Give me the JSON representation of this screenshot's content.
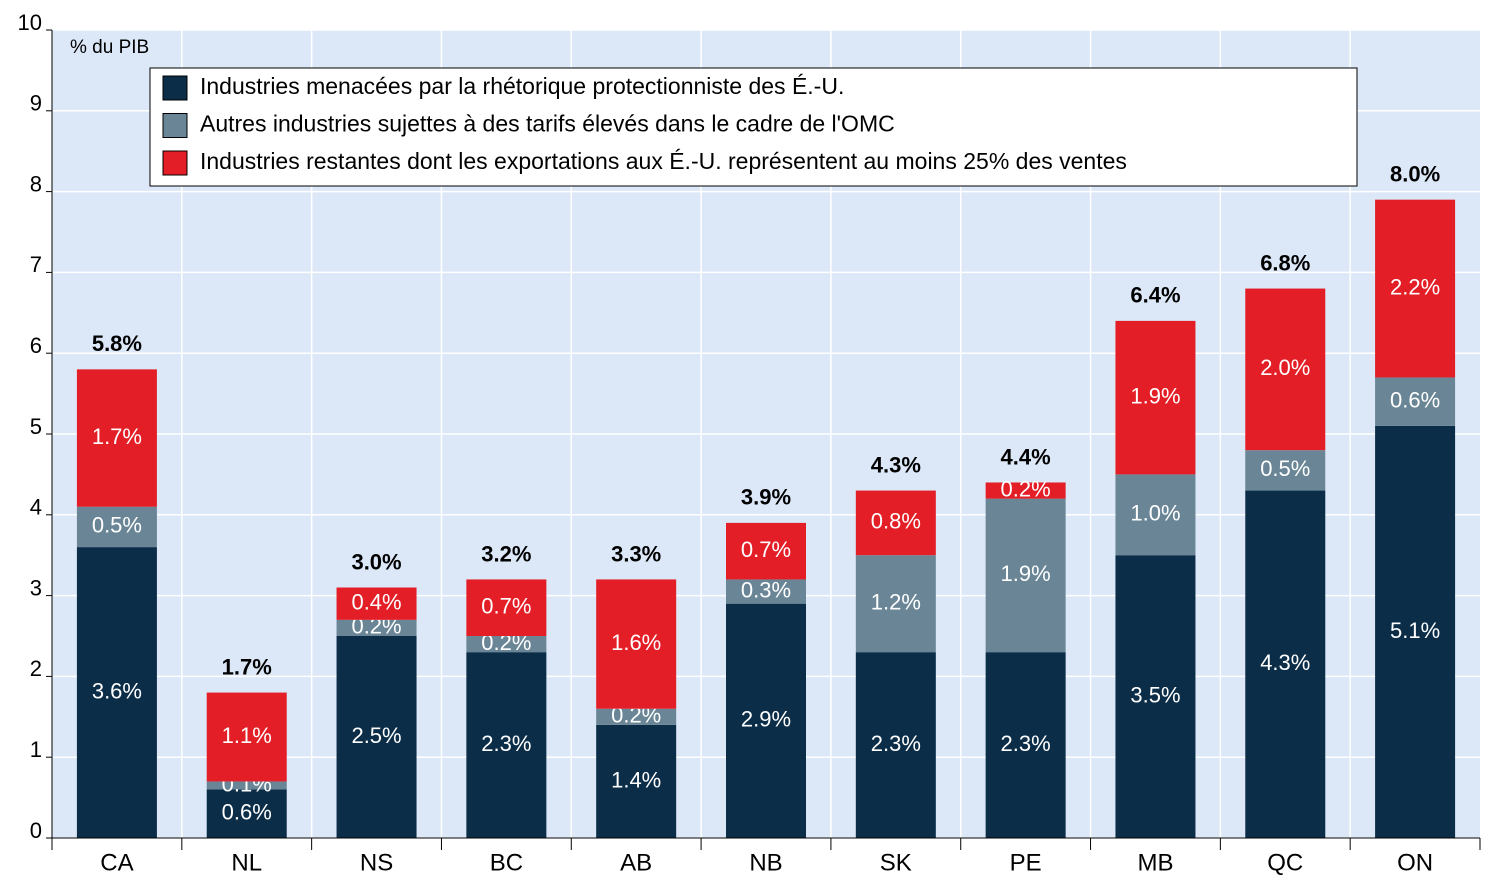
{
  "chart_data": {
    "type": "stacked_bar",
    "y_axis_label": "% du PIB",
    "categories": [
      "CA",
      "NL",
      "NS",
      "BC",
      "AB",
      "NB",
      "SK",
      "PE",
      "MB",
      "QC",
      "ON"
    ],
    "series": [
      {
        "name": "Industries menacées par la rhétorique protectionniste des É.-U.",
        "color": "#0b2d48",
        "values": [
          3.6,
          0.6,
          2.5,
          2.3,
          1.4,
          2.9,
          2.3,
          2.3,
          3.5,
          4.3,
          5.1
        ],
        "value_labels": [
          "3.6%",
          "0.6%",
          "2.5%",
          "2.3%",
          "1.4%",
          "2.9%",
          "2.3%",
          "2.3%",
          "3.5%",
          "4.3%",
          "5.1%"
        ]
      },
      {
        "name": "Autres industries sujettes à des tarifs élevés dans le cadre de l'OMC",
        "color": "#6a8696",
        "values": [
          0.5,
          0.1,
          0.2,
          0.2,
          0.2,
          0.3,
          1.2,
          1.9,
          1.0,
          0.5,
          0.6
        ],
        "value_labels": [
          "0.5%",
          "0.1%",
          "0.2%",
          "0.2%",
          "0.2%",
          "0.3%",
          "1.2%",
          "1.9%",
          "1.0%",
          "0.5%",
          "0.6%"
        ]
      },
      {
        "name": "Industries restantes dont les exportations aux É.-U. représentent au moins 25% des ventes",
        "color": "#e31e26",
        "values": [
          1.7,
          1.1,
          0.4,
          0.7,
          1.6,
          0.7,
          0.8,
          0.2,
          1.9,
          2.0,
          2.2
        ],
        "value_labels": [
          "1.7%",
          "1.1%",
          "0.4%",
          "0.7%",
          "1.6%",
          "0.7%",
          "0.8%",
          "0.2%",
          "1.9%",
          "2.0%",
          "2.2%"
        ]
      }
    ],
    "totals": {
      "values": [
        5.8,
        1.7,
        3.0,
        3.2,
        3.3,
        3.9,
        4.3,
        4.4,
        6.4,
        6.8,
        8.0
      ],
      "value_labels": [
        "5.8%",
        "1.7%",
        "3.0%",
        "3.2%",
        "3.3%",
        "3.9%",
        "4.3%",
        "4.4%",
        "6.4%",
        "6.8%",
        "8.0%"
      ]
    },
    "ylim": [
      0,
      10
    ],
    "yticks": [
      0,
      1,
      2,
      3,
      4,
      5,
      6,
      7,
      8,
      9,
      10
    ],
    "grid": true,
    "background": "#dce8f8"
  }
}
